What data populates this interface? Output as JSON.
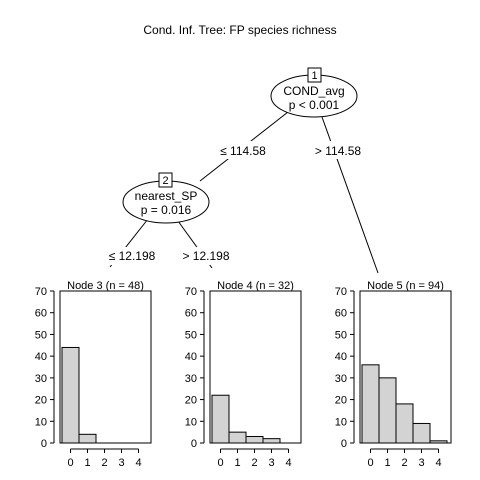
{
  "title": "Cond. Inf. Tree: FP species richness",
  "nodes": {
    "n1": {
      "id": "1",
      "variable": "COND_avg",
      "p": "p < 0.001"
    },
    "n2": {
      "id": "2",
      "variable": "nearest_SP",
      "p": "p = 0.016"
    }
  },
  "edges": {
    "e12": "≤ 114.58",
    "e15": "> 114.58",
    "e23": "≤ 12.198",
    "e24": "> 12.198"
  },
  "terminals": [
    {
      "title": "Node 3 (n = 48)",
      "categories": [
        "0",
        "1",
        "2",
        "3",
        "4"
      ],
      "values": [
        44,
        4,
        0,
        0,
        0
      ]
    },
    {
      "title": "Node 4 (n = 32)",
      "categories": [
        "0",
        "1",
        "2",
        "3",
        "4"
      ],
      "values": [
        22,
        5,
        3,
        2,
        0
      ]
    },
    {
      "title": "Node 5 (n = 94)",
      "categories": [
        "0",
        "1",
        "2",
        "3",
        "4"
      ],
      "values": [
        36,
        30,
        18,
        9,
        1
      ]
    }
  ],
  "chart_data": {
    "type": "bar",
    "ylim": [
      0,
      70
    ],
    "yticks": [
      0,
      10,
      20,
      30,
      40,
      50,
      60,
      70
    ],
    "bar_color": "#d3d3d3",
    "panels": [
      {
        "title": "Node 3 (n = 48)",
        "categories": [
          "0",
          "1",
          "2",
          "3",
          "4"
        ],
        "values": [
          44,
          4,
          0,
          0,
          0
        ]
      },
      {
        "title": "Node 4 (n = 32)",
        "categories": [
          "0",
          "1",
          "2",
          "3",
          "4"
        ],
        "values": [
          22,
          5,
          3,
          2,
          0
        ]
      },
      {
        "title": "Node 5 (n = 94)",
        "categories": [
          "0",
          "1",
          "2",
          "3",
          "4"
        ],
        "values": [
          36,
          30,
          18,
          9,
          1
        ]
      }
    ]
  }
}
